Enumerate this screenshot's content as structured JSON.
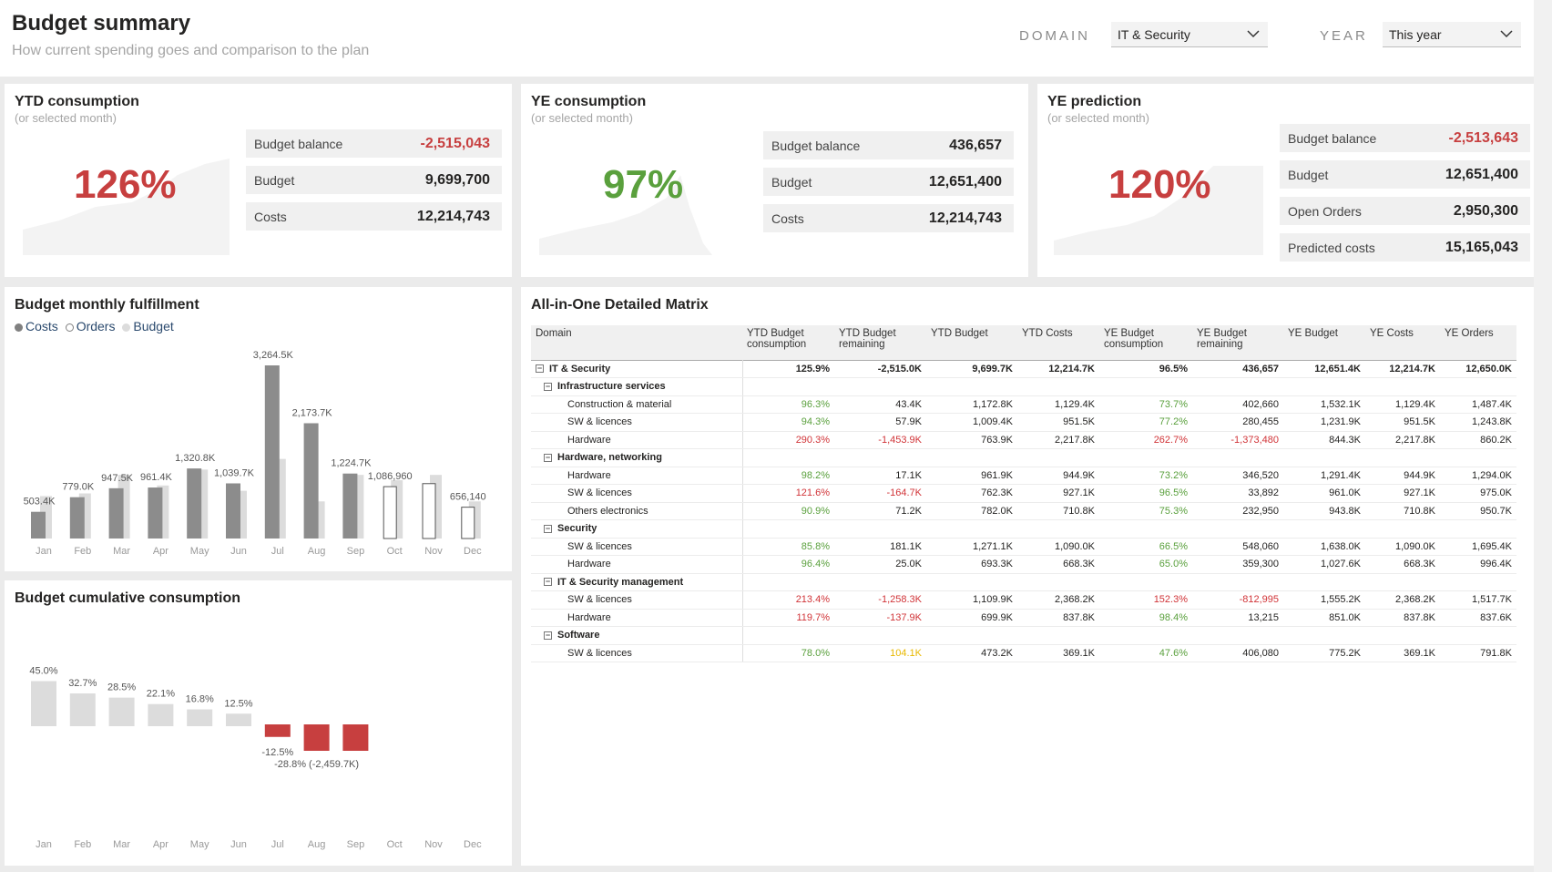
{
  "header": {
    "title": "Budget summary",
    "subtitle": "How current spending goes and comparison to the plan",
    "domain_label": "DOMAIN",
    "domain_value": "IT & Security",
    "year_label": "YEAR",
    "year_value": "This year"
  },
  "ytd": {
    "title": "YTD consumption",
    "subtitle": "(or selected month)",
    "pct": "126%",
    "color": "#c73f3f",
    "rows": [
      {
        "k": "Budget balance",
        "v": "-2,515,043",
        "neg": true
      },
      {
        "k": "Budget",
        "v": "9,699,700"
      },
      {
        "k": "Costs",
        "v": "12,214,743"
      }
    ]
  },
  "ye": {
    "title": "YE consumption",
    "subtitle": "(or selected month)",
    "pct": "97%",
    "color": "#5aa03d",
    "rows": [
      {
        "k": "Budget balance",
        "v": "436,657"
      },
      {
        "k": "Budget",
        "v": "12,651,400"
      },
      {
        "k": "Costs",
        "v": "12,214,743"
      }
    ]
  },
  "pred": {
    "title": "YE prediction",
    "subtitle": "(or selected month)",
    "pct": "120%",
    "color": "#c73f3f",
    "rows": [
      {
        "k": "Budget balance",
        "v": "-2,513,643",
        "neg": true
      },
      {
        "k": "Budget",
        "v": "12,651,400"
      },
      {
        "k": "Open Orders",
        "v": "2,950,300"
      },
      {
        "k": "Predicted costs",
        "v": "15,165,043"
      }
    ]
  },
  "monthly": {
    "title": "Budget monthly fulfillment",
    "legend": [
      "Costs",
      "Orders",
      "Budget"
    ]
  },
  "cumulative": {
    "title": "Budget cumulative consumption"
  },
  "matrix": {
    "title": "All-in-One Detailed Matrix",
    "headers": [
      "Domain",
      "YTD Budget consumption",
      "YTD Budget remaining",
      "YTD Budget",
      "YTD Costs",
      "YE Budget consumption",
      "YE Budget remaining",
      "YE Budget",
      "YE Costs",
      "YE Orders"
    ],
    "rows": [
      {
        "lvl": 0,
        "name": "IT & Security",
        "cells": [
          "125.9%",
          "-2,515.0K",
          "9,699.7K",
          "12,214.7K",
          "96.5%",
          "436,657",
          "12,651.4K",
          "12,214.7K",
          "12,650.0K"
        ],
        "cls": [
          "",
          "",
          "",
          "",
          "",
          "",
          "",
          "",
          ""
        ]
      },
      {
        "lvl": 1,
        "name": "Infrastructure services",
        "cells": []
      },
      {
        "lvl": 2,
        "name": "Construction & material",
        "cells": [
          "96.3%",
          "43.4K",
          "1,172.8K",
          "1,129.4K",
          "73.7%",
          "402,660",
          "1,532.1K",
          "1,129.4K",
          "1,487.4K"
        ],
        "cls": [
          "g",
          "",
          "",
          "",
          "g",
          "",
          "",
          "",
          ""
        ]
      },
      {
        "lvl": 2,
        "name": "SW & licences",
        "cells": [
          "94.3%",
          "57.9K",
          "1,009.4K",
          "951.5K",
          "77.2%",
          "280,455",
          "1,231.9K",
          "951.5K",
          "1,243.8K"
        ],
        "cls": [
          "g",
          "",
          "",
          "",
          "g",
          "",
          "",
          "",
          ""
        ]
      },
      {
        "lvl": 2,
        "name": "Hardware",
        "cells": [
          "290.3%",
          "-1,453.9K",
          "763.9K",
          "2,217.8K",
          "262.7%",
          "-1,373,480",
          "844.3K",
          "2,217.8K",
          "860.2K"
        ],
        "cls": [
          "r",
          "r",
          "",
          "",
          "r",
          "r",
          "",
          "",
          ""
        ]
      },
      {
        "lvl": 1,
        "name": "Hardware, networking",
        "cells": []
      },
      {
        "lvl": 2,
        "name": "Hardware",
        "cells": [
          "98.2%",
          "17.1K",
          "961.9K",
          "944.9K",
          "73.2%",
          "346,520",
          "1,291.4K",
          "944.9K",
          "1,294.0K"
        ],
        "cls": [
          "g",
          "",
          "",
          "",
          "g",
          "",
          "",
          "",
          ""
        ]
      },
      {
        "lvl": 2,
        "name": "SW & licences",
        "cells": [
          "121.6%",
          "-164.7K",
          "762.3K",
          "927.1K",
          "96.5%",
          "33,892",
          "961.0K",
          "927.1K",
          "975.0K"
        ],
        "cls": [
          "r",
          "r",
          "",
          "",
          "g",
          "",
          "",
          "",
          ""
        ]
      },
      {
        "lvl": 2,
        "name": "Others electronics",
        "cells": [
          "90.9%",
          "71.2K",
          "782.0K",
          "710.8K",
          "75.3%",
          "232,950",
          "943.8K",
          "710.8K",
          "950.7K"
        ],
        "cls": [
          "g",
          "",
          "",
          "",
          "g",
          "",
          "",
          "",
          ""
        ]
      },
      {
        "lvl": 1,
        "name": "Security",
        "cells": []
      },
      {
        "lvl": 2,
        "name": "SW & licences",
        "cells": [
          "85.8%",
          "181.1K",
          "1,271.1K",
          "1,090.0K",
          "66.5%",
          "548,060",
          "1,638.0K",
          "1,090.0K",
          "1,695.4K"
        ],
        "cls": [
          "g",
          "",
          "",
          "",
          "g",
          "",
          "",
          "",
          ""
        ]
      },
      {
        "lvl": 2,
        "name": "Hardware",
        "cells": [
          "96.4%",
          "25.0K",
          "693.3K",
          "668.3K",
          "65.0%",
          "359,300",
          "1,027.6K",
          "668.3K",
          "996.4K"
        ],
        "cls": [
          "g",
          "",
          "",
          "",
          "g",
          "",
          "",
          "",
          ""
        ]
      },
      {
        "lvl": 1,
        "name": "IT & Security management",
        "cells": []
      },
      {
        "lvl": 2,
        "name": "SW & licences",
        "cells": [
          "213.4%",
          "-1,258.3K",
          "1,109.9K",
          "2,368.2K",
          "152.3%",
          "-812,995",
          "1,555.2K",
          "2,368.2K",
          "1,517.7K"
        ],
        "cls": [
          "r",
          "r",
          "",
          "",
          "r",
          "r",
          "",
          "",
          ""
        ]
      },
      {
        "lvl": 2,
        "name": "Hardware",
        "cells": [
          "119.7%",
          "-137.9K",
          "699.9K",
          "837.8K",
          "98.4%",
          "13,215",
          "851.0K",
          "837.8K",
          "837.6K"
        ],
        "cls": [
          "r",
          "r",
          "",
          "",
          "g",
          "",
          "",
          "",
          ""
        ]
      },
      {
        "lvl": 1,
        "name": "Software",
        "cells": []
      },
      {
        "lvl": 2,
        "name": "SW & licences",
        "cells": [
          "78.0%",
          "104.1K",
          "473.2K",
          "369.1K",
          "47.6%",
          "406,080",
          "775.2K",
          "369.1K",
          "791.8K"
        ],
        "cls": [
          "g",
          "y",
          "",
          "",
          "g",
          "",
          "",
          "",
          ""
        ]
      }
    ]
  },
  "chart_data": [
    {
      "type": "bar",
      "title": "Budget monthly fulfillment",
      "categories": [
        "Jan",
        "Feb",
        "Mar",
        "Apr",
        "May",
        "Jun",
        "Jul",
        "Aug",
        "Sep",
        "Oct",
        "Nov",
        "Dec"
      ],
      "series": [
        {
          "name": "Costs",
          "values": [
            503.4,
            779.0,
            947.5,
            961.4,
            1320.8,
            1039.7,
            3264.5,
            2173.7,
            1224.7,
            0,
            0,
            0
          ]
        },
        {
          "name": "Orders",
          "values": [
            0,
            0,
            0,
            0,
            0,
            0,
            0,
            0,
            0,
            1086.96,
            1150,
            656.14
          ]
        },
        {
          "name": "Budget",
          "values": [
            800,
            850,
            1200,
            1000,
            1300,
            900,
            1500,
            700,
            1200,
            1100,
            1200,
            700
          ]
        }
      ],
      "labels": [
        "503.4K",
        "779.0K",
        "947.5K",
        "961.4K",
        "1,320.8K",
        "1,039.7K",
        "3,264.5K",
        "2,173.7K",
        "1,224.7K",
        "1,086,960",
        "",
        "656,140"
      ],
      "colors": {
        "costs": "#8c8c8c",
        "budget": "#dcdcdc"
      }
    },
    {
      "type": "bar",
      "title": "Budget cumulative consumption",
      "categories": [
        "Jan",
        "Feb",
        "Mar",
        "Apr",
        "May",
        "Jun",
        "Jul",
        "Aug",
        "Sep",
        "Oct",
        "Nov",
        "Dec"
      ],
      "values": [
        45.0,
        32.7,
        28.5,
        22.1,
        16.8,
        12.5,
        -12.5,
        -28.8,
        -28.8,
        null,
        null,
        null
      ],
      "labels": [
        "45.0%",
        "32.7%",
        "28.5%",
        "22.1%",
        "16.8%",
        "12.5%",
        "-12.5%",
        "-28.8% (-2,459.7K)",
        "",
        "",
        "",
        ""
      ],
      "colors": {
        "positive": "#dcdcdc",
        "negative": "#c73f3f"
      }
    }
  ]
}
